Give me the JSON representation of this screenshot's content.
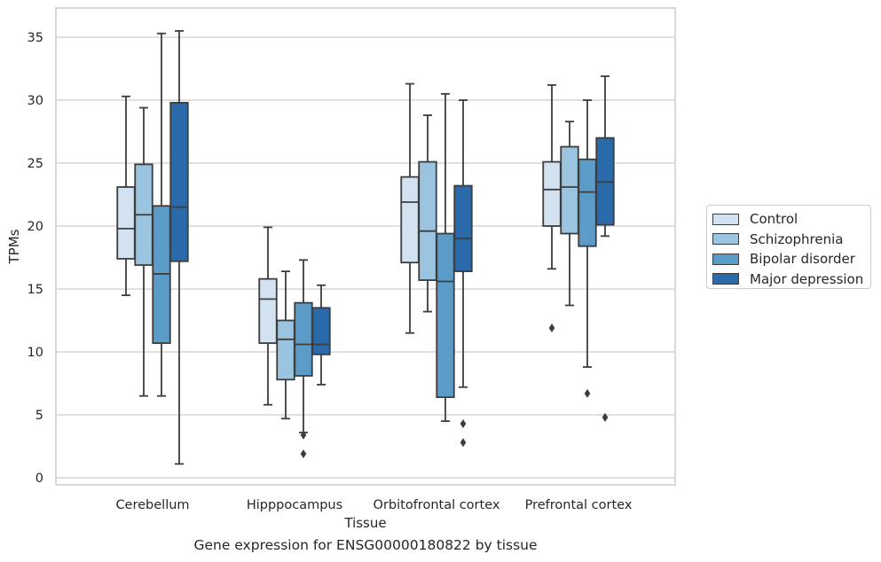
{
  "chart_data": {
    "type": "box",
    "title": "",
    "caption": "Gene expression for ENSG00000180822 by tissue",
    "xlabel": "Tissue",
    "ylabel": "TPMs",
    "ylim": [
      -0.6,
      37.2
    ],
    "yticks": [
      0,
      5,
      10,
      15,
      20,
      25,
      30,
      35
    ],
    "grid": true,
    "legend_placement": "center-right outside",
    "categories": [
      "Cerebellum",
      "Hipppocampus",
      "Orbitofrontal cortex",
      "Prefrontal cortex"
    ],
    "series": [
      {
        "name": "Control",
        "color": "#d2e2f1",
        "boxes": [
          {
            "whisker_low": 14.5,
            "q1": 17.4,
            "median": 19.8,
            "q3": 23.1,
            "whisker_high": 30.3,
            "outliers": []
          },
          {
            "whisker_low": 5.8,
            "q1": 10.7,
            "median": 14.2,
            "q3": 15.8,
            "whisker_high": 19.9,
            "outliers": []
          },
          {
            "whisker_low": 11.5,
            "q1": 17.1,
            "median": 21.9,
            "q3": 23.9,
            "whisker_high": 31.3,
            "outliers": []
          },
          {
            "whisker_low": 16.6,
            "q1": 20.0,
            "median": 22.9,
            "q3": 25.1,
            "whisker_high": 31.2,
            "outliers": [
              11.9
            ]
          }
        ]
      },
      {
        "name": "Schizophrenia",
        "color": "#9ac4df",
        "boxes": [
          {
            "whisker_low": 6.5,
            "q1": 16.9,
            "median": 20.9,
            "q3": 24.9,
            "whisker_high": 29.4,
            "outliers": []
          },
          {
            "whisker_low": 4.7,
            "q1": 7.8,
            "median": 11.0,
            "q3": 12.5,
            "whisker_high": 16.4,
            "outliers": []
          },
          {
            "whisker_low": 13.2,
            "q1": 15.7,
            "median": 19.6,
            "q3": 25.1,
            "whisker_high": 28.8,
            "outliers": []
          },
          {
            "whisker_low": 13.7,
            "q1": 19.4,
            "median": 23.1,
            "q3": 26.3,
            "whisker_high": 28.3,
            "outliers": []
          }
        ]
      },
      {
        "name": "Bipolar disorder",
        "color": "#5a9bc8",
        "boxes": [
          {
            "whisker_low": 6.5,
            "q1": 10.7,
            "median": 16.2,
            "q3": 21.6,
            "whisker_high": 35.3,
            "outliers": []
          },
          {
            "whisker_low": 3.6,
            "q1": 8.1,
            "median": 10.6,
            "q3": 13.9,
            "whisker_high": 17.3,
            "outliers": [
              3.4,
              1.9
            ]
          },
          {
            "whisker_low": 4.5,
            "q1": 6.4,
            "median": 15.6,
            "q3": 19.4,
            "whisker_high": 30.5,
            "outliers": []
          },
          {
            "whisker_low": 8.8,
            "q1": 18.4,
            "median": 22.7,
            "q3": 25.3,
            "whisker_high": 30.0,
            "outliers": [
              6.7
            ]
          }
        ]
      },
      {
        "name": "Major depression",
        "color": "#2a6aaa",
        "boxes": [
          {
            "whisker_low": 1.1,
            "q1": 17.2,
            "median": 21.5,
            "q3": 29.8,
            "whisker_high": 35.5,
            "outliers": []
          },
          {
            "whisker_low": 7.4,
            "q1": 9.8,
            "median": 10.6,
            "q3": 13.5,
            "whisker_high": 15.3,
            "outliers": []
          },
          {
            "whisker_low": 7.2,
            "q1": 16.4,
            "median": 19.0,
            "q3": 23.2,
            "whisker_high": 30.0,
            "outliers": [
              4.3,
              2.8
            ]
          },
          {
            "whisker_low": 19.2,
            "q1": 20.1,
            "median": 23.5,
            "q3": 27.0,
            "whisker_high": 31.9,
            "outliers": [
              4.8
            ]
          }
        ]
      }
    ]
  }
}
